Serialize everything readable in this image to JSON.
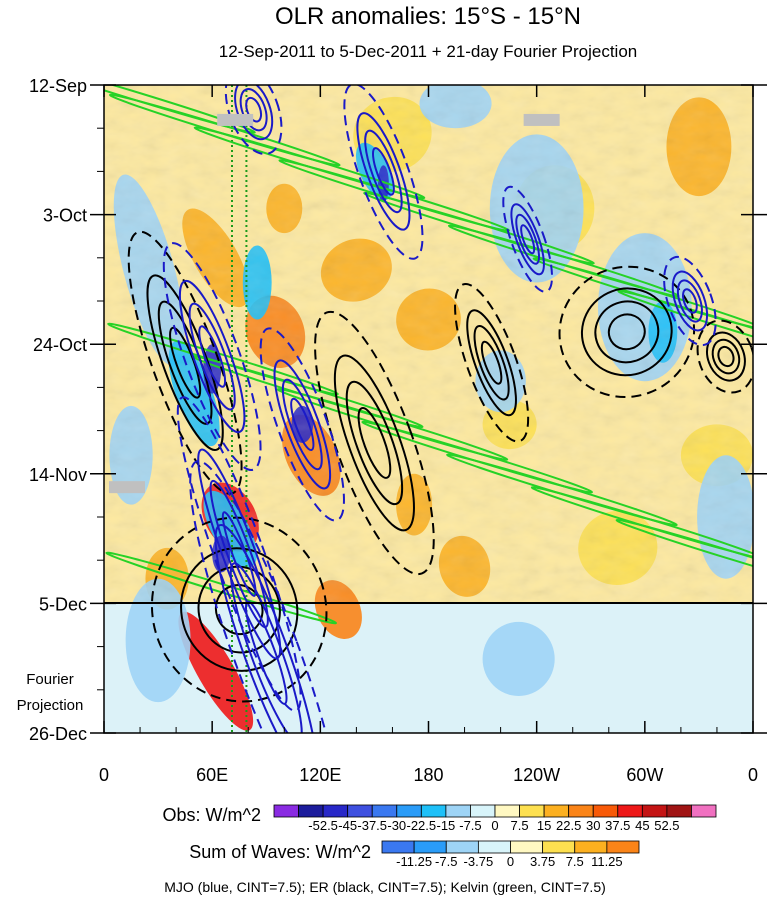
{
  "chart_data": {
    "type": "heatmap",
    "title": "OLR anomalies: 15°S - 15°N",
    "subtitle": "12-Sep-2011 to 5-Dec-2011 + 21-day Fourier Projection",
    "x_tick_labels": [
      "0",
      "60E",
      "120E",
      "180",
      "120W",
      "60W",
      "0"
    ],
    "x_ticks_deg_east": [
      0,
      60,
      120,
      180,
      240,
      300,
      360
    ],
    "xlim_deg_east": [
      0,
      360
    ],
    "y_tick_labels": [
      "12-Sep",
      "3-Oct",
      "24-Oct",
      "14-Nov",
      "5-Dec",
      "26-Dec"
    ],
    "y_ticks_day": [
      0,
      21,
      42,
      63,
      84,
      105
    ],
    "ylim_day": [
      0,
      105
    ],
    "observation_end_day": 84,
    "projection_label": [
      "Fourier",
      "Projection"
    ],
    "reference_longitudes_deg_east": [
      71,
      79
    ],
    "obs_colorbar": {
      "label": "Obs: W/m^2",
      "tick_labels": [
        "-52.5",
        "-45",
        "-37.5",
        "-30",
        "-22.5",
        "-15",
        "-7.5",
        "0",
        "7.5",
        "15",
        "22.5",
        "30",
        "37.5",
        "45",
        "52.5"
      ],
      "colors": [
        "#8a2be2",
        "#1c1c9c",
        "#2828c8",
        "#3e50e0",
        "#3a78f0",
        "#2a9cf8",
        "#1ec0f8",
        "#9ed4f6",
        "#d8f4fa",
        "#fff8c2",
        "#fde050",
        "#fcb020",
        "#fa8418",
        "#f85a08",
        "#ee1818",
        "#c41414",
        "#a01414",
        "#f070c0"
      ]
    },
    "waves_colorbar": {
      "label": "Sum of Waves: W/m^2",
      "tick_labels": [
        "-11.25",
        "-7.5",
        "-3.75",
        "0",
        "3.75",
        "7.5",
        "11.25"
      ],
      "colors": [
        "#3a78f0",
        "#2a9cf8",
        "#9ed4f6",
        "#d8f4fa",
        "#fff8c2",
        "#fde050",
        "#fcb020",
        "#fa8418"
      ]
    },
    "contours_note": "MJO (blue, CINT=7.5); ER (black, CINT=7.5); Kelvin (green, CINT=7.5)",
    "features": {
      "mjo_blue": [
        {
          "lon": 83,
          "day": 4,
          "dlon": 9,
          "dday": 5
        },
        {
          "lon": 155,
          "day": 14,
          "dlon": 9,
          "dday": 10
        },
        {
          "lon": 235,
          "day": 25,
          "dlon": 6,
          "dday": 6
        },
        {
          "lon": 325,
          "day": 35,
          "dlon": 8,
          "dday": 5
        },
        {
          "lon": 60,
          "day": 44,
          "dlon": 10,
          "dday": 13
        },
        {
          "lon": 110,
          "day": 55,
          "dlon": 9,
          "dday": 11
        },
        {
          "lon": 75,
          "day": 76,
          "dlon": 9,
          "dday": 18
        },
        {
          "lon": 90,
          "day": 92,
          "dlon": 12,
          "dday": 22
        }
      ],
      "er_black": [
        {
          "lon": 290,
          "day": 40,
          "dlon": 25,
          "dday": 7
        },
        {
          "lon": 150,
          "day": 58,
          "dlon": 14,
          "dday": 15
        },
        {
          "lon": 215,
          "day": 45,
          "dlon": 9,
          "dday": 9
        },
        {
          "lon": 45,
          "day": 45,
          "dlon": 12,
          "dday": 15
        },
        {
          "lon": 75,
          "day": 85,
          "dlon": 32,
          "dday": 10
        },
        {
          "lon": 345,
          "day": 44,
          "dlon": 10,
          "dday": 4
        }
      ]
    }
  }
}
